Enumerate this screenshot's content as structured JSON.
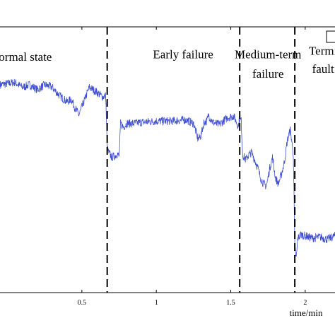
{
  "chart_data": {
    "type": "line",
    "xlabel": "time/min",
    "ylabel": "",
    "xlim": [
      -0.05,
      2.2
    ],
    "ylim": [
      -1.0,
      1.2
    ],
    "grid": false,
    "xticks": [
      {
        "v": 0.5,
        "label": "0.5"
      },
      {
        "v": 1.0,
        "label": "1"
      },
      {
        "v": 1.5,
        "label": "1.5"
      },
      {
        "v": 2.0,
        "label": "2"
      }
    ],
    "phase_boundaries": [
      0.67,
      1.56,
      1.93
    ],
    "phase_labels": [
      {
        "lines": [
          "ormal state"
        ],
        "x": 0.12,
        "y": 0.92
      },
      {
        "lines": [
          "Early failure"
        ],
        "x": 1.18,
        "y": 0.94
      },
      {
        "lines": [
          "Medium-term",
          "failure"
        ],
        "x": 1.75,
        "y": [
          0.94,
          0.78
        ]
      },
      {
        "lines": [
          "Termi",
          "fault"
        ],
        "x": 2.12,
        "y": [
          0.97,
          0.82
        ]
      }
    ],
    "line_color": "#3f4fd0",
    "series": [
      {
        "x": [
          -0.05,
          0.0,
          0.05,
          0.1,
          0.15,
          0.2,
          0.25,
          0.3,
          0.35,
          0.4,
          0.43,
          0.45,
          0.48,
          0.52,
          0.55,
          0.6,
          0.64,
          0.66,
          0.67,
          0.68,
          0.7,
          0.72,
          0.74,
          0.75,
          0.76,
          0.78,
          0.8,
          0.85,
          0.9,
          1.0,
          1.1,
          1.2,
          1.25,
          1.28,
          1.3,
          1.32,
          1.34,
          1.35,
          1.38,
          1.42,
          1.48,
          1.52,
          1.55,
          1.56,
          1.57,
          1.58,
          1.6,
          1.62,
          1.64,
          1.66,
          1.68,
          1.7,
          1.72,
          1.74,
          1.76,
          1.78,
          1.8,
          1.82,
          1.84,
          1.86,
          1.88,
          1.9,
          1.92,
          1.93,
          1.94,
          1.95,
          1.97,
          2.0,
          2.05,
          2.1,
          2.15,
          2.2
        ],
        "y": [
          0.72,
          0.73,
          0.74,
          0.7,
          0.72,
          0.68,
          0.72,
          0.7,
          0.63,
          0.58,
          0.6,
          0.54,
          0.47,
          0.6,
          0.7,
          0.66,
          0.62,
          0.63,
          0.2,
          0.16,
          0.12,
          0.13,
          0.15,
          0.12,
          0.4,
          0.37,
          0.4,
          0.4,
          0.41,
          0.42,
          0.42,
          0.43,
          0.4,
          0.27,
          0.3,
          0.41,
          0.42,
          0.47,
          0.41,
          0.39,
          0.45,
          0.46,
          0.38,
          0.44,
          0.42,
          0.14,
          0.1,
          0.14,
          0.16,
          0.1,
          0.04,
          -0.05,
          -0.1,
          -0.12,
          0.02,
          0.12,
          -0.05,
          -0.1,
          -0.02,
          0.08,
          0.26,
          0.35,
          0.15,
          -0.62,
          -0.72,
          -0.55,
          -0.52,
          -0.53,
          -0.55,
          -0.54,
          -0.56,
          -0.53
        ]
      }
    ]
  }
}
